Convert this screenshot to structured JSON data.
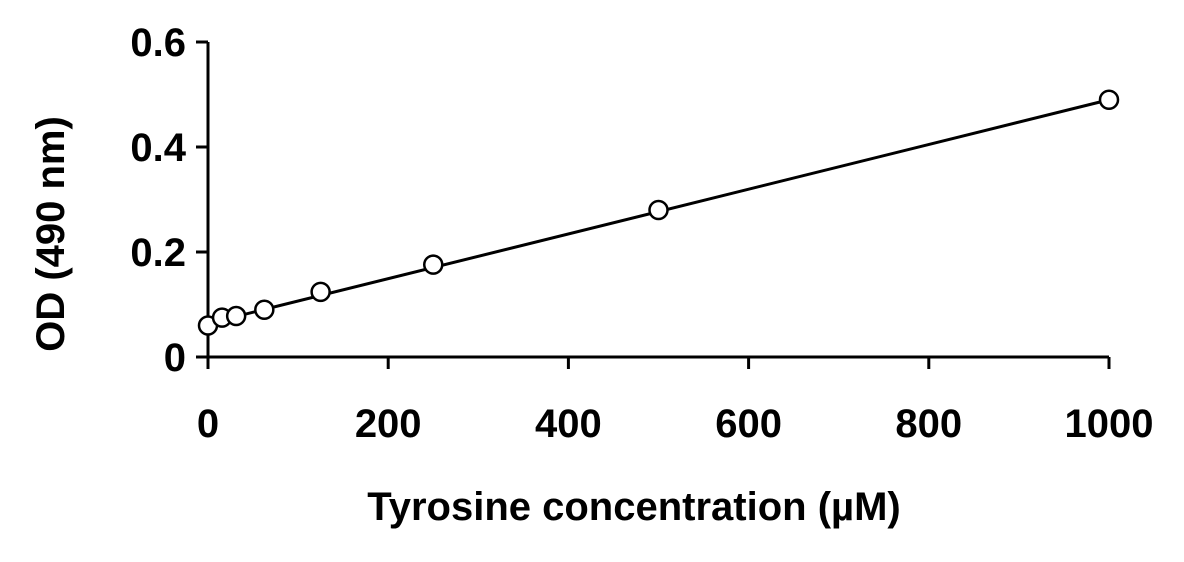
{
  "chart_data": {
    "type": "scatter",
    "title": "",
    "xlabel": "Tyrosine concentration (µM)",
    "ylabel": "OD (490 nm)",
    "xlim": [
      0,
      1000
    ],
    "ylim": [
      0,
      0.6
    ],
    "x_ticks": [
      0,
      200,
      400,
      600,
      800,
      1000
    ],
    "x_tick_labels": [
      "0",
      "200",
      "400",
      "600",
      "800",
      "1000"
    ],
    "y_ticks": [
      0,
      0.2,
      0.4,
      0.6
    ],
    "y_tick_labels": [
      "0",
      "0.2",
      "0.4",
      "0.6"
    ],
    "grid": false,
    "legend": "none",
    "series": [
      {
        "marker": "open-circle",
        "color": "#000000",
        "x": [
          0,
          15.6,
          31.25,
          62.5,
          125,
          250,
          500,
          1000
        ],
        "y": [
          0.06,
          0.075,
          0.078,
          0.09,
          0.124,
          0.176,
          0.28,
          0.49
        ]
      }
    ],
    "trendline": {
      "type": "linear",
      "color": "#000000",
      "x": [
        0,
        1000
      ],
      "y": [
        0.064,
        0.49
      ]
    }
  }
}
